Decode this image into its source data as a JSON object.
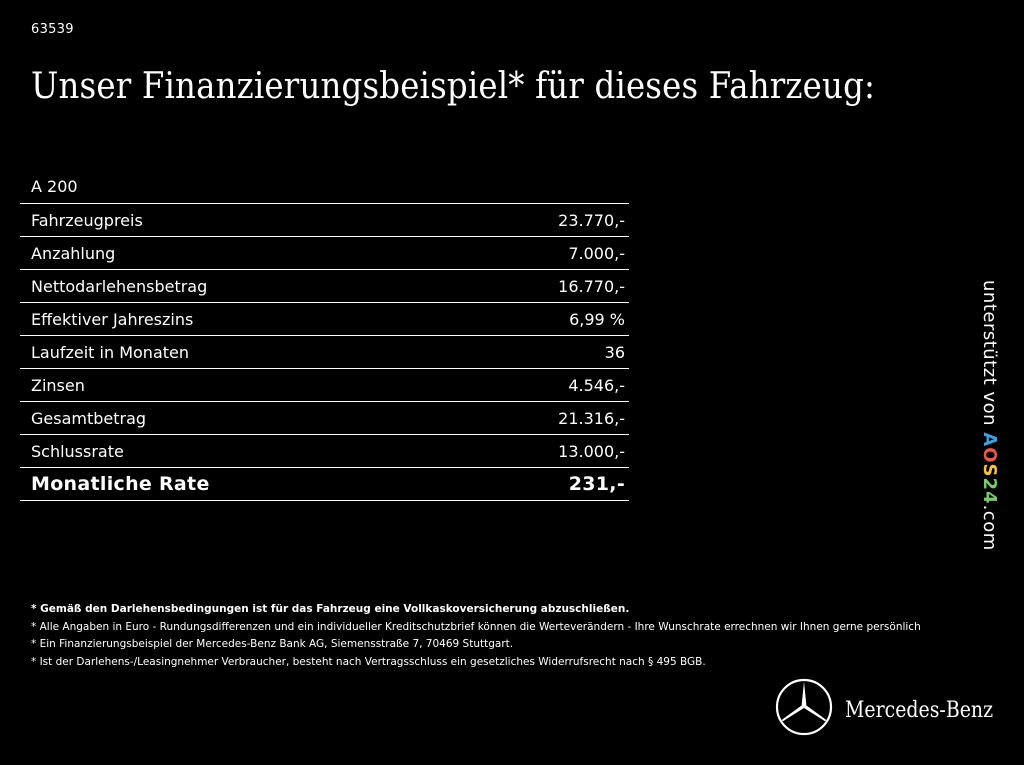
{
  "reference_number": "63539",
  "headline": "Unser Finanzierungsbeispiel* für dieses Fahrzeug:",
  "model": "A 200",
  "rows": [
    {
      "label": "Fahrzeugpreis",
      "value": "23.770,-"
    },
    {
      "label": "Anzahlung",
      "value": "7.000,-"
    },
    {
      "label": "Nettodarlehensbetrag",
      "value": "16.770,-"
    },
    {
      "label": "Effektiver Jahreszins",
      "value": "6,99 %"
    },
    {
      "label": "Laufzeit in Monaten",
      "value": "36"
    },
    {
      "label": "Zinsen",
      "value": "4.546,-"
    },
    {
      "label": "Gesamtbetrag",
      "value": "21.316,-"
    },
    {
      "label": "Schlussrate",
      "value": "13.000,-"
    }
  ],
  "total": {
    "label": "Monatliche Rate",
    "value": "231,-"
  },
  "footnotes": [
    "* Gemäß den Darlehensbedingungen ist für das Fahrzeug eine Vollkaskoversicherung abzuschließen.",
    "* Alle Angaben in Euro - Rundungsdifferenzen und ein individueller Kreditschutzbrief können die Werteverändern - Ihre Wunschrate errechnen wir Ihnen gerne persönlich",
    "* Ein Finanzierungsbeispiel der Mercedes-Benz Bank AG, Siemensstraße 7, 70469 Stuttgart.",
    "* Ist der Darlehens-/Leasingnehmer Verbraucher, besteht nach Vertragsschluss ein gesetzliches Widerrufsrecht nach § 495 BGB."
  ],
  "side_credit": {
    "prefix": "unterstützt von",
    "brand_parts": [
      "A",
      "O",
      "S",
      "24"
    ],
    "suffix": ".com"
  },
  "brand": {
    "name": "Mercedes-Benz",
    "logo_icon": "mercedes-star-icon"
  }
}
